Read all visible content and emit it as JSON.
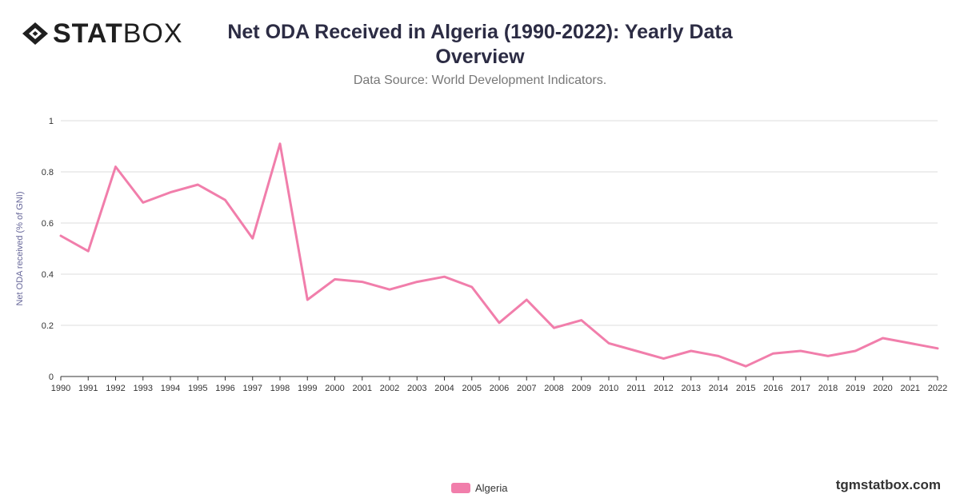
{
  "brand": {
    "logo_bold": "STAT",
    "logo_light": "BOX",
    "footer": "tgmstatbox.com"
  },
  "header": {
    "title": "Net ODA Received in Algeria (1990-2022): Yearly Data Overview",
    "subtitle": "Data Source: World Development Indicators."
  },
  "colors": {
    "series": "#f17eab",
    "grid": "#dddddd",
    "axis": "#333333",
    "title": "#2c2c44"
  },
  "chart_data": {
    "type": "line",
    "ylabel": "Net ODA received (% of GNI)",
    "xlabel": "",
    "ylim": [
      0,
      1
    ],
    "yticks": [
      "0",
      "0.2",
      "0.4",
      "0.6",
      "0.8",
      "1"
    ],
    "grid": true,
    "legend_position": "bottom-center",
    "categories": [
      "1990",
      "1991",
      "1992",
      "1993",
      "1994",
      "1995",
      "1996",
      "1997",
      "1998",
      "1999",
      "2000",
      "2001",
      "2002",
      "2003",
      "2004",
      "2005",
      "2006",
      "2007",
      "2008",
      "2009",
      "2010",
      "2011",
      "2012",
      "2013",
      "2014",
      "2015",
      "2016",
      "2017",
      "2018",
      "2019",
      "2020",
      "2021",
      "2022"
    ],
    "series": [
      {
        "name": "Algeria",
        "values": [
          0.55,
          0.49,
          0.82,
          0.68,
          0.72,
          0.75,
          0.69,
          0.54,
          0.91,
          0.3,
          0.38,
          0.37,
          0.34,
          0.37,
          0.39,
          0.35,
          0.21,
          0.3,
          0.19,
          0.22,
          0.13,
          0.1,
          0.07,
          0.1,
          0.08,
          0.04,
          0.09,
          0.1,
          0.08,
          0.1,
          0.15,
          0.13,
          0.11
        ]
      }
    ]
  }
}
